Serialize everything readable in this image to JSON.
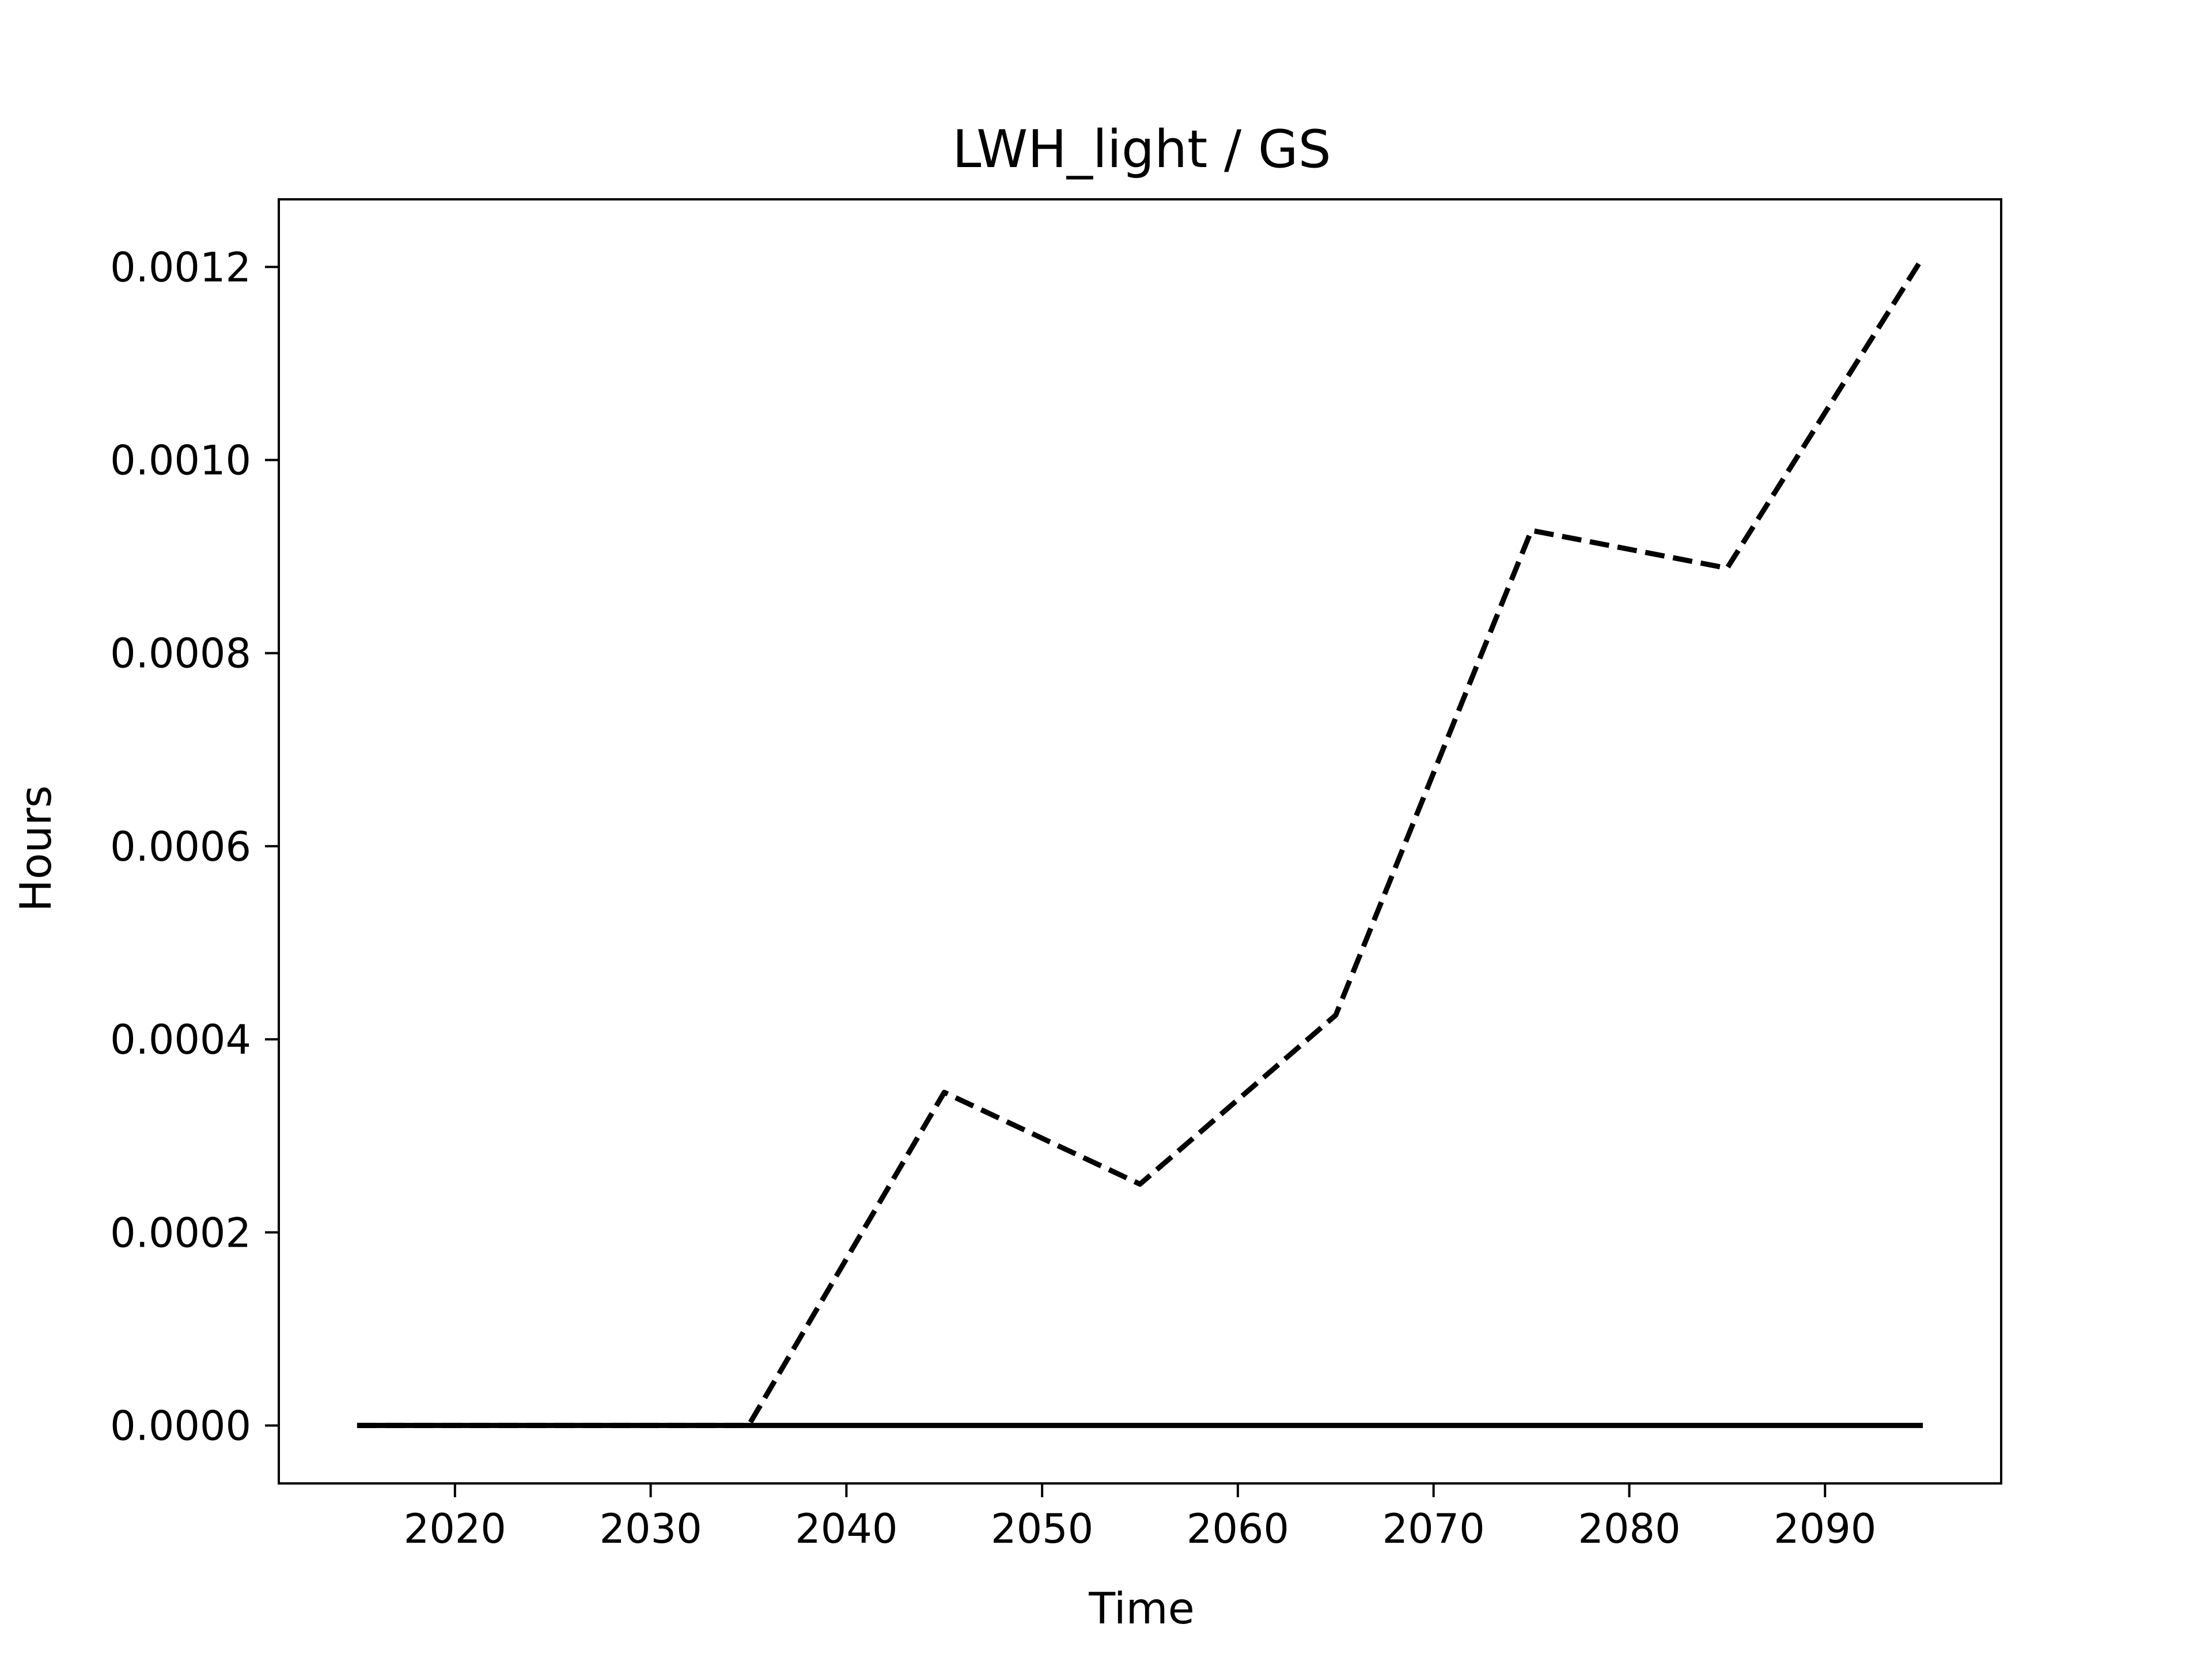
{
  "chart_data": {
    "type": "line",
    "title": "LWH_light / GS",
    "xlabel": "Time",
    "ylabel": "Hours",
    "xlim": [
      2011,
      2099
    ],
    "ylim": [
      -6e-05,
      0.00127
    ],
    "xticks": [
      2020,
      2030,
      2040,
      2050,
      2060,
      2070,
      2080,
      2090
    ],
    "xtick_labels": [
      "2020",
      "2030",
      "2040",
      "2050",
      "2060",
      "2070",
      "2080",
      "2090"
    ],
    "yticks": [
      0,
      0.0002,
      0.0004,
      0.0006,
      0.0008,
      0.001,
      0.0012
    ],
    "ytick_labels": [
      "0.0000",
      "0.0002",
      "0.0004",
      "0.0006",
      "0.0008",
      "0.0010",
      "0.0012"
    ],
    "grid": false,
    "legend": false,
    "series": [
      {
        "style": "dashed",
        "color": "#000000",
        "x": [
          2015,
          2025,
          2035,
          2045,
          2055,
          2065,
          2075,
          2085,
          2095
        ],
        "values": [
          0,
          0,
          0,
          0.000345,
          0.00025,
          0.000425,
          0.000927,
          0.000888,
          0.00121
        ]
      },
      {
        "style": "solid",
        "color": "#000000",
        "x": [
          2015,
          2025,
          2035,
          2045,
          2055,
          2065,
          2075,
          2085,
          2095
        ],
        "values": [
          0,
          0,
          0,
          0,
          0,
          0,
          0,
          0,
          0
        ]
      }
    ]
  }
}
